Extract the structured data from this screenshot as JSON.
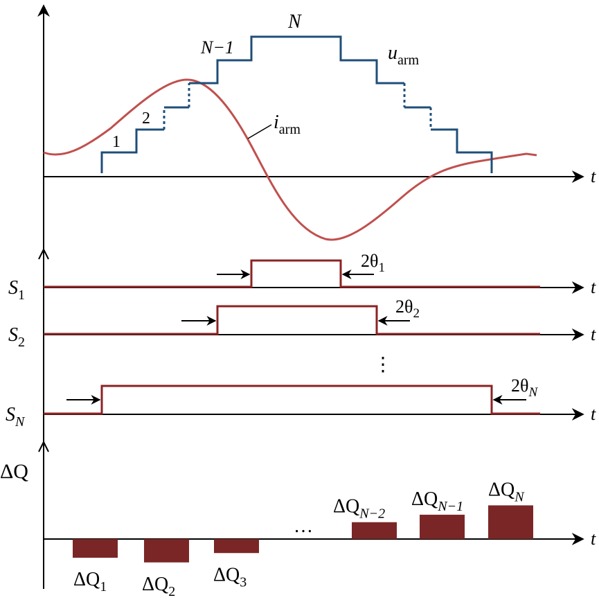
{
  "axes": {
    "time_label": "t"
  },
  "top_panel": {
    "voltage_name": "u",
    "voltage_sub": "arm",
    "current_name": "i",
    "current_sub": "arm",
    "step_labels": {
      "one": "1",
      "two": "2",
      "n_minus_1": "N−1",
      "n": "N"
    }
  },
  "switches": [
    {
      "name": "S",
      "sub": "1",
      "angle_prefix": "2θ",
      "angle_sub": "1"
    },
    {
      "name": "S",
      "sub": "2",
      "angle_prefix": "2θ",
      "angle_sub": "2"
    },
    {
      "name": "S",
      "sub": "N",
      "angle_prefix": "2θ",
      "angle_sub": "N"
    }
  ],
  "switch_ellipsis": "⋮",
  "charge_panel": {
    "axis_label": "ΔQ",
    "bars": [
      {
        "name": "ΔQ",
        "sub": "1",
        "value": -1
      },
      {
        "name": "ΔQ",
        "sub": "2",
        "value": -1.25
      },
      {
        "name": "ΔQ",
        "sub": "3",
        "value": -0.75
      },
      {
        "name": "ΔQ",
        "sub": "N−2",
        "value": 0.9
      },
      {
        "name": "ΔQ",
        "sub": "N−1",
        "value": 1.3
      },
      {
        "name": "ΔQ",
        "sub": "N",
        "value": 1.8
      }
    ],
    "ellipsis": "…"
  },
  "colors": {
    "voltage": "#1f4e79",
    "current": "#c0504d",
    "switch_signal": "#8b2323",
    "charge_bar": "#7b2626"
  }
}
